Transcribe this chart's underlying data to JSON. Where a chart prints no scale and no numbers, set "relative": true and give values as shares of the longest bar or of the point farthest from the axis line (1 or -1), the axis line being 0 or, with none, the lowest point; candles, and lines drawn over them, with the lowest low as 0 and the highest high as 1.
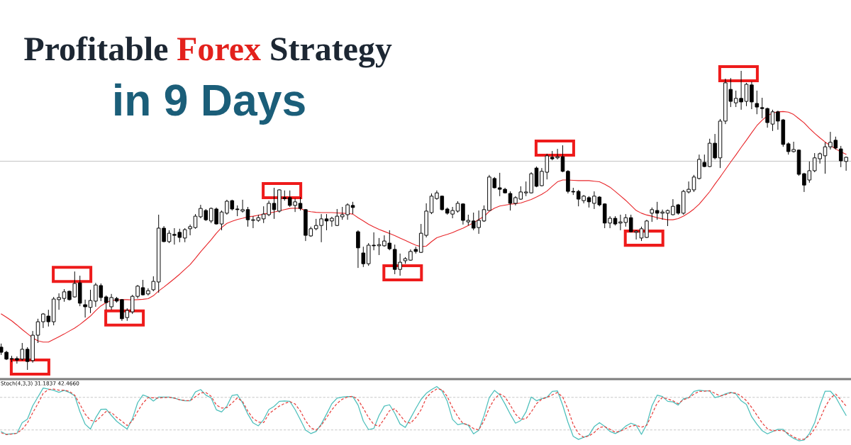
{
  "chart_data": [
    {
      "type": "candlestick",
      "title": "Profitable Forex Strategy",
      "subtitle": "in 9 Days",
      "relative": true,
      "tick_labels": false,
      "color": "#000000",
      "categories": [
        null,
        null,
        null,
        null,
        null,
        null,
        null,
        null,
        null,
        null,
        null,
        null,
        null,
        null,
        null,
        null,
        null,
        null,
        null,
        null,
        null,
        null,
        null,
        null,
        null,
        null,
        null,
        null,
        null,
        null,
        null,
        null,
        null,
        null,
        null,
        null,
        null,
        null,
        null,
        null,
        null,
        null,
        null,
        null,
        null,
        null,
        null,
        null,
        null,
        null,
        null,
        null,
        null,
        null,
        null,
        null,
        null,
        null,
        null,
        null,
        null,
        null,
        null,
        null,
        null,
        null,
        null,
        null,
        null,
        null,
        null,
        null,
        null,
        null,
        null,
        null,
        null,
        null,
        null,
        null,
        null,
        null,
        null,
        null,
        null,
        null,
        null,
        null,
        null,
        null,
        null,
        null,
        null,
        null,
        null,
        null,
        null,
        null,
        null,
        null,
        null,
        null,
        null,
        null,
        null,
        null,
        null,
        null,
        null,
        null,
        null,
        null,
        null,
        null,
        null,
        null,
        null,
        null,
        null,
        null,
        null,
        null,
        null,
        null,
        null,
        null,
        null,
        null,
        null,
        null,
        null,
        null,
        null,
        null,
        null,
        null,
        null,
        null,
        null,
        null,
        null,
        null,
        null,
        null,
        null,
        null,
        null,
        null,
        null,
        null,
        null,
        null,
        null,
        null,
        null,
        null,
        null,
        null,
        null,
        null,
        null,
        null
      ],
      "ohlc": [
        [
          0.076,
          0.088,
          0.05,
          0.059
        ],
        [
          0.059,
          0.064,
          0.033,
          0.036
        ],
        [
          0.038,
          0.047,
          0.026,
          0.036
        ],
        [
          0.038,
          0.045,
          0.021,
          0.033
        ],
        [
          0.036,
          0.09,
          0.031,
          0.069
        ],
        [
          0.069,
          0.076,
          0,
          0.028
        ],
        [
          0.031,
          0.13,
          0.024,
          0.116
        ],
        [
          0.116,
          0.171,
          0.09,
          0.161
        ],
        [
          0.161,
          0.19,
          0.14,
          0.187
        ],
        [
          0.18,
          0.201,
          0.145,
          0.161
        ],
        [
          0.161,
          0.244,
          0.149,
          0.237
        ],
        [
          0.235,
          0.256,
          0.201,
          0.242
        ],
        [
          0.239,
          0.27,
          0.228,
          0.261
        ],
        [
          0.263,
          0.265,
          0.232,
          0.235
        ],
        [
          0.244,
          0.329,
          0.242,
          0.289
        ],
        [
          0.291,
          0.315,
          0.213,
          0.223
        ],
        [
          0.218,
          0.235,
          0.175,
          0.211
        ],
        [
          0.209,
          0.268,
          0.19,
          0.232
        ],
        [
          0.23,
          0.291,
          0.211,
          0.284
        ],
        [
          0.282,
          0.289,
          0.23,
          0.242
        ],
        [
          0.244,
          0.249,
          0.201,
          0.225
        ],
        [
          0.211,
          0.254,
          0.201,
          0.242
        ],
        [
          0.239,
          0.244,
          0.225,
          0.23
        ],
        [
          0.235,
          0.237,
          0.164,
          0.171
        ],
        [
          0.175,
          0.206,
          0.164,
          0.199
        ],
        [
          0.194,
          0.251,
          0.187,
          0.246
        ],
        [
          0.246,
          0.284,
          0.239,
          0.28
        ],
        [
          0.275,
          0.301,
          0.249,
          0.251
        ],
        [
          0.254,
          0.273,
          0.249,
          0.265
        ],
        [
          0.268,
          0.313,
          0.263,
          0.296
        ],
        [
          0.294,
          0.519,
          0.258,
          0.474
        ],
        [
          0.474,
          0.481,
          0.427,
          0.429
        ],
        [
          0.429,
          0.467,
          0.424,
          0.457
        ],
        [
          0.453,
          0.474,
          0.419,
          0.45
        ],
        [
          0.46,
          0.472,
          0.427,
          0.443
        ],
        [
          0.441,
          0.474,
          0.427,
          0.469
        ],
        [
          0.472,
          0.486,
          0.45,
          0.479
        ],
        [
          0.476,
          0.521,
          0.472,
          0.514
        ],
        [
          0.512,
          0.552,
          0.507,
          0.54
        ],
        [
          0.533,
          0.538,
          0.498,
          0.502
        ],
        [
          0.498,
          0.543,
          0.491,
          0.54
        ],
        [
          0.538,
          0.543,
          0.486,
          0.488
        ],
        [
          0.488,
          0.533,
          0.467,
          0.528
        ],
        [
          0.524,
          0.569,
          0.519,
          0.564
        ],
        [
          0.566,
          0.569,
          0.533,
          0.538
        ],
        [
          0.538,
          0.55,
          0.514,
          0.536
        ],
        [
          0.531,
          0.569,
          0.526,
          0.536
        ],
        [
          0.536,
          0.545,
          0.479,
          0.502
        ],
        [
          0.5,
          0.514,
          0.474,
          0.502
        ],
        [
          0.5,
          0.519,
          0.495,
          0.509
        ],
        [
          0.505,
          0.547,
          0.491,
          0.521
        ],
        [
          0.519,
          0.566,
          0.514,
          0.557
        ],
        [
          0.557,
          0.609,
          0.505,
          0.536
        ],
        [
          0.531,
          0.604,
          0.526,
          0.602
        ],
        [
          0.576,
          0.6,
          0.566,
          0.573
        ],
        [
          0.576,
          0.6,
          0.545,
          0.55
        ],
        [
          0.55,
          0.573,
          0.528,
          0.562
        ],
        [
          0.557,
          0.578,
          0.533,
          0.54
        ],
        [
          0.536,
          0.538,
          0.431,
          0.45
        ],
        [
          0.448,
          0.479,
          0.445,
          0.472
        ],
        [
          0.472,
          0.505,
          0.467,
          0.483
        ],
        [
          0.483,
          0.521,
          0.427,
          0.505
        ],
        [
          0.505,
          0.521,
          0.467,
          0.498
        ],
        [
          0.498,
          0.512,
          0.479,
          0.507
        ],
        [
          0.483,
          0.538,
          0.481,
          0.514
        ],
        [
          0.512,
          0.545,
          0.502,
          0.519
        ],
        [
          0.519,
          0.557,
          0.502,
          0.552
        ],
        [
          0.55,
          0.562,
          0.521,
          0.543
        ],
        [
          0.462,
          0.467,
          0.341,
          0.408
        ],
        [
          0.391,
          0.412,
          0.344,
          0.355
        ],
        [
          0.355,
          0.424,
          0.348,
          0.417
        ],
        [
          0.417,
          0.46,
          0.4,
          0.415
        ],
        [
          0.415,
          0.441,
          0.384,
          0.419
        ],
        [
          0.415,
          0.45,
          0.412,
          0.431
        ],
        [
          0.424,
          0.467,
          0.4,
          0.405
        ],
        [
          0.403,
          0.419,
          0.32,
          0.336
        ],
        [
          0.336,
          0.389,
          0.315,
          0.36
        ],
        [
          0.365,
          0.377,
          0.355,
          0.372
        ],
        [
          0.367,
          0.403,
          0.365,
          0.396
        ],
        [
          0.403,
          0.412,
          0.389,
          0.396
        ],
        [
          0.393,
          0.488,
          0.391,
          0.457
        ],
        [
          0.45,
          0.557,
          0.443,
          0.531
        ],
        [
          0.526,
          0.59,
          0.521,
          0.581
        ],
        [
          0.573,
          0.6,
          0.569,
          0.592
        ],
        [
          0.581,
          0.583,
          0.533,
          0.536
        ],
        [
          0.538,
          0.543,
          0.519,
          0.524
        ],
        [
          0.521,
          0.545,
          0.507,
          0.533
        ],
        [
          0.531,
          0.564,
          0.526,
          0.557
        ],
        [
          0.555,
          0.557,
          0.486,
          0.5
        ],
        [
          0.495,
          0.519,
          0.483,
          0.5
        ],
        [
          0.498,
          0.526,
          0.467,
          0.474
        ],
        [
          0.476,
          0.533,
          0.455,
          0.5
        ],
        [
          0.498,
          0.55,
          0.495,
          0.536
        ],
        [
          0.533,
          0.652,
          0.533,
          0.645
        ],
        [
          0.64,
          0.645,
          0.607,
          0.609
        ],
        [
          0.609,
          0.659,
          0.581,
          0.604
        ],
        [
          0.604,
          0.609,
          0.59,
          0.592
        ],
        [
          0.59,
          0.597,
          0.533,
          0.557
        ],
        [
          0.557,
          0.581,
          0.55,
          0.576
        ],
        [
          0.571,
          0.614,
          0.569,
          0.595
        ],
        [
          0.592,
          0.63,
          0.581,
          0.595
        ],
        [
          0.592,
          0.661,
          0.59,
          0.656
        ],
        [
          0.675,
          0.68,
          0.611,
          0.614
        ],
        [
          0.616,
          0.675,
          0.614,
          0.664
        ],
        [
          0.661,
          0.723,
          0.637,
          0.716
        ],
        [
          0.711,
          0.732,
          0.701,
          0.706
        ],
        [
          0.709,
          0.739,
          0.704,
          0.713
        ],
        [
          0.713,
          0.751,
          0.661,
          0.664
        ],
        [
          0.664,
          0.668,
          0.59,
          0.597
        ],
        [
          0.597,
          0.609,
          0.585,
          0.595
        ],
        [
          0.597,
          0.602,
          0.547,
          0.571
        ],
        [
          0.566,
          0.585,
          0.557,
          0.581
        ],
        [
          0.576,
          0.581,
          0.543,
          0.562
        ],
        [
          0.557,
          0.597,
          0.538,
          0.581
        ],
        [
          0.578,
          0.581,
          0.547,
          0.552
        ],
        [
          0.555,
          0.557,
          0.474,
          0.491
        ],
        [
          0.491,
          0.514,
          0.474,
          0.507
        ],
        [
          0.507,
          0.514,
          0.483,
          0.488
        ],
        [
          0.491,
          0.519,
          0.467,
          0.495
        ],
        [
          0.493,
          0.521,
          0.479,
          0.509
        ],
        [
          0.509,
          0.519,
          0.46,
          0.462
        ],
        [
          0.46,
          0.467,
          0.436,
          0.464
        ],
        [
          0.441,
          0.479,
          0.431,
          0.472
        ],
        [
          0.443,
          0.502,
          0.441,
          0.498
        ],
        [
          0.524,
          0.543,
          0.495,
          0.536
        ],
        [
          0.533,
          0.562,
          0.502,
          0.524
        ],
        [
          0.524,
          0.536,
          0.502,
          0.528
        ],
        [
          0.524,
          0.536,
          0.481,
          0.533
        ],
        [
          0.519,
          0.571,
          0.517,
          0.547
        ],
        [
          0.552,
          0.555,
          0.519,
          0.524
        ],
        [
          0.524,
          0.602,
          0.519,
          0.597
        ],
        [
          0.595,
          0.63,
          0.59,
          0.604
        ],
        [
          0.602,
          0.652,
          0.595,
          0.645
        ],
        [
          0.64,
          0.72,
          0.637,
          0.704
        ],
        [
          0.694,
          0.72,
          0.678,
          0.68
        ],
        [
          0.68,
          0.773,
          0.678,
          0.758
        ],
        [
          0.758,
          0.789,
          0.704,
          0.709
        ],
        [
          0.709,
          0.839,
          0.675,
          0.832
        ],
        [
          0.832,
          0.974,
          0.822,
          0.96
        ],
        [
          0.938,
          0.976,
          0.879,
          0.898
        ],
        [
          0.893,
          0.934,
          0.879,
          0.908
        ],
        [
          0.908,
          1,
          0.87,
          0.896
        ],
        [
          0.898,
          0.96,
          0.882,
          0.955
        ],
        [
          0.953,
          0.964,
          0.872,
          0.896
        ],
        [
          0.891,
          0.934,
          0.855,
          0.879
        ],
        [
          0.877,
          0.91,
          0.841,
          0.874
        ],
        [
          0.874,
          0.877,
          0.81,
          0.827
        ],
        [
          0.822,
          0.87,
          0.799,
          0.863
        ],
        [
          0.863,
          0.867,
          0.803,
          0.832
        ],
        [
          0.836,
          0.839,
          0.746,
          0.754
        ],
        [
          0.756,
          0.761,
          0.72,
          0.73
        ],
        [
          0.73,
          0.763,
          0.727,
          0.737
        ],
        [
          0.735,
          0.737,
          0.649,
          0.654
        ],
        [
          0.656,
          0.659,
          0.595,
          0.618
        ],
        [
          0.635,
          0.697,
          0.626,
          0.666
        ],
        [
          0.666,
          0.725,
          0.661,
          0.709
        ],
        [
          0.706,
          0.727,
          0.69,
          0.723
        ],
        [
          0.716,
          0.761,
          0.656,
          0.746
        ],
        [
          0.746,
          0.796,
          0.737,
          0.761
        ],
        [
          0.768,
          0.78,
          0.737,
          0.742
        ],
        [
          0.739,
          0.749,
          0.678,
          0.699
        ],
        [
          0.697,
          0.713,
          0.666,
          0.711
        ]
      ],
      "series": [
        {
          "type": "line",
          "color": "#e8262a",
          "values": [
            0.187,
            0.176,
            0.164,
            0.15,
            0.135,
            0.121,
            0.107,
            0.097,
            0.093,
            0.093,
            0.102,
            0.111,
            0.12,
            0.13,
            0.14,
            0.152,
            0.166,
            0.18,
            0.198,
            0.214,
            0.225,
            0.232,
            0.234,
            0.235,
            0.235,
            0.234,
            0.235,
            0.236,
            0.238,
            0.248,
            0.264,
            0.277,
            0.291,
            0.305,
            0.32,
            0.336,
            0.352,
            0.373,
            0.395,
            0.415,
            0.435,
            0.457,
            0.476,
            0.49,
            0.497,
            0.503,
            0.507,
            0.512,
            0.514,
            0.517,
            0.521,
            0.524,
            0.528,
            0.532,
            0.536,
            0.54,
            0.541,
            0.54,
            0.532,
            0.529,
            0.527,
            0.526,
            0.526,
            0.526,
            0.525,
            0.524,
            0.523,
            0.521,
            0.509,
            0.498,
            0.487,
            0.478,
            0.47,
            0.463,
            0.456,
            0.449,
            0.441,
            0.433,
            0.425,
            0.417,
            0.412,
            0.414,
            0.429,
            0.442,
            0.448,
            0.453,
            0.459,
            0.467,
            0.474,
            0.483,
            0.492,
            0.503,
            0.513,
            0.53,
            0.541,
            0.548,
            0.551,
            0.554,
            0.556,
            0.558,
            0.564,
            0.57,
            0.578,
            0.587,
            0.598,
            0.614,
            0.629,
            0.635,
            0.635,
            0.634,
            0.633,
            0.633,
            0.633,
            0.631,
            0.629,
            0.621,
            0.611,
            0.597,
            0.582,
            0.567,
            0.55,
            0.533,
            0.524,
            0.518,
            0.514,
            0.509,
            0.505,
            0.502,
            0.502,
            0.506,
            0.514,
            0.525,
            0.538,
            0.554,
            0.575,
            0.596,
            0.621,
            0.645,
            0.67,
            0.695,
            0.719,
            0.744,
            0.768,
            0.793,
            0.817,
            0.835,
            0.85,
            0.859,
            0.863,
            0.864,
            0.862,
            0.854,
            0.84,
            0.826,
            0.808,
            0.791,
            0.776,
            0.762,
            0.75,
            0.739,
            0.729,
            0.721
          ]
        }
      ],
      "ref_lines": [
        {
          "axis": "y",
          "value": 0.698,
          "color": "#c4c4c4"
        }
      ]
    },
    {
      "type": "line",
      "title": "Stoch(4,3,3) 31.1837 42.4660",
      "relative": true,
      "tick_labels": false,
      "categories": [
        null,
        null,
        null,
        null,
        null,
        null,
        null,
        null,
        null,
        null,
        null,
        null,
        null,
        null,
        null,
        null,
        null,
        null,
        null,
        null,
        null,
        null,
        null,
        null,
        null,
        null,
        null,
        null,
        null,
        null,
        null,
        null,
        null,
        null,
        null,
        null,
        null,
        null,
        null,
        null,
        null,
        null,
        null,
        null,
        null,
        null,
        null,
        null,
        null,
        null,
        null,
        null,
        null,
        null,
        null,
        null,
        null,
        null,
        null,
        null,
        null,
        null,
        null,
        null,
        null,
        null,
        null,
        null,
        null,
        null,
        null,
        null,
        null,
        null,
        null,
        null,
        null,
        null,
        null,
        null,
        null,
        null,
        null,
        null,
        null,
        null,
        null,
        null,
        null,
        null,
        null,
        null,
        null,
        null,
        null,
        null,
        null,
        null,
        null,
        null,
        null,
        null,
        null,
        null,
        null,
        null,
        null,
        null,
        null,
        null,
        null,
        null,
        null,
        null,
        null,
        null,
        null,
        null,
        null,
        null,
        null,
        null,
        null,
        null,
        null,
        null,
        null,
        null,
        null,
        null,
        null,
        null,
        null,
        null,
        null,
        null,
        null,
        null,
        null,
        null,
        null,
        null,
        null,
        null,
        null,
        null,
        null,
        null,
        null,
        null,
        null,
        null,
        null,
        null,
        null,
        null,
        null,
        null,
        null,
        null,
        null,
        null
      ],
      "series": [
        {
          "color": "#4cbfbb",
          "values": [
            0.167,
            0.118,
            0.128,
            0.138,
            0.334,
            0.398,
            0.643,
            0.806,
            0.972,
            0.953,
            0.928,
            0.894,
            0.928,
            0.889,
            0.83,
            0.535,
            0.305,
            0.216,
            0.422,
            0.58,
            0.584,
            0.467,
            0.359,
            0.285,
            0.216,
            0.403,
            0.702,
            0.845,
            0.81,
            0.732,
            0.806,
            0.806,
            0.806,
            0.786,
            0.756,
            0.737,
            0.737,
            0.899,
            0.943,
            0.84,
            0.791,
            0.57,
            0.53,
            0.639,
            0.835,
            0.85,
            0.697,
            0.491,
            0.329,
            0.275,
            0.388,
            0.575,
            0.634,
            0.727,
            0.732,
            0.727,
            0.575,
            0.388,
            0.196,
            0.133,
            0.172,
            0.309,
            0.491,
            0.683,
            0.786,
            0.806,
            0.815,
            0.815,
            0.658,
            0.363,
            0.206,
            0.226,
            0.467,
            0.639,
            0.663,
            0.506,
            0.309,
            0.246,
            0.417,
            0.594,
            0.761,
            0.874,
            0.943,
            1,
            0.918,
            0.727,
            0.393,
            0.295,
            0.319,
            0.285,
            0.128,
            0.192,
            0.462,
            0.796,
            0.928,
            0.845,
            0.678,
            0.491,
            0.324,
            0.373,
            0.53,
            0.806,
            0.737,
            0.776,
            0.801,
            0.909,
            0.918,
            0.653,
            0.339,
            0.083,
            0.025,
            0.064,
            0.103,
            0.26,
            0.334,
            0.265,
            0.172,
            0.133,
            0.182,
            0.27,
            0.324,
            0.285,
            0.118,
            0.3,
            0.643,
            0.84,
            0.815,
            0.727,
            0.717,
            0.658,
            0.776,
            0.791,
            0.909,
            0.933,
            0.918,
            0.918,
            0.796,
            0.82,
            0.864,
            0.894,
            0.864,
            0.737,
            0.668,
            0.442,
            0.305,
            0.187,
            0.128,
            0.172,
            0.211,
            0.211,
            0.108,
            0.044,
            0,
            0.015,
            0.133,
            0.329,
            0.653,
            0.914,
            0.914,
            0.806,
            0.634,
            0.467
          ]
        },
        {
          "color": "#e8423f",
          "line_style": "dashed",
          "values": [
            0.147,
            0.113,
            0.123,
            0.138,
            0.211,
            0.329,
            0.516,
            0.683,
            0.874,
            0.943,
            0.953,
            0.933,
            0.933,
            0.909,
            0.84,
            0.673,
            0.491,
            0.378,
            0.354,
            0.447,
            0.54,
            0.521,
            0.432,
            0.359,
            0.28,
            0.368,
            0.54,
            0.693,
            0.796,
            0.791,
            0.786,
            0.796,
            0.801,
            0.786,
            0.756,
            0.742,
            0.737,
            0.81,
            0.884,
            0.889,
            0.82,
            0.658,
            0.604,
            0.609,
            0.697,
            0.791,
            0.722,
            0.545,
            0.413,
            0.344,
            0.334,
            0.496,
            0.57,
            0.639,
            0.688,
            0.722,
            0.678,
            0.55,
            0.368,
            0.236,
            0.196,
            0.285,
            0.427,
            0.57,
            0.688,
            0.766,
            0.806,
            0.82,
            0.756,
            0.599,
            0.427,
            0.3,
            0.265,
            0.403,
            0.555,
            0.589,
            0.472,
            0.349,
            0.324,
            0.427,
            0.57,
            0.791,
            0.894,
            0.953,
            0.943,
            0.815,
            0.609,
            0.447,
            0.319,
            0.295,
            0.226,
            0.201,
            0.368,
            0.604,
            0.771,
            0.864,
            0.806,
            0.658,
            0.491,
            0.393,
            0.408,
            0.53,
            0.683,
            0.766,
            0.801,
            0.845,
            0.889,
            0.806,
            0.58,
            0.3,
            0.133,
            0.064,
            0.088,
            0.152,
            0.246,
            0.26,
            0.211,
            0.157,
            0.177,
            0.226,
            0.27,
            0.285,
            0.25,
            0.285,
            0.486,
            0.697,
            0.801,
            0.771,
            0.737,
            0.683,
            0.756,
            0.791,
            0.86,
            0.909,
            0.914,
            0.923,
            0.874,
            0.825,
            0.85,
            0.884,
            0.879,
            0.825,
            0.737,
            0.614,
            0.472,
            0.329,
            0.221,
            0.182,
            0.192,
            0.187,
            0.133,
            0.069,
            0.029,
            0.029,
            0.093,
            0.216,
            0.398,
            0.619,
            0.786,
            0.86,
            0.756,
            0.639
          ]
        }
      ],
      "ref_lines": [
        {
          "axis": "y",
          "value": 0.8,
          "color": "#c8c8c8",
          "line_style": "dashed"
        },
        {
          "axis": "y",
          "value": 0.2,
          "color": "#c8c8c8",
          "line_style": "dashed"
        }
      ]
    }
  ]
}
